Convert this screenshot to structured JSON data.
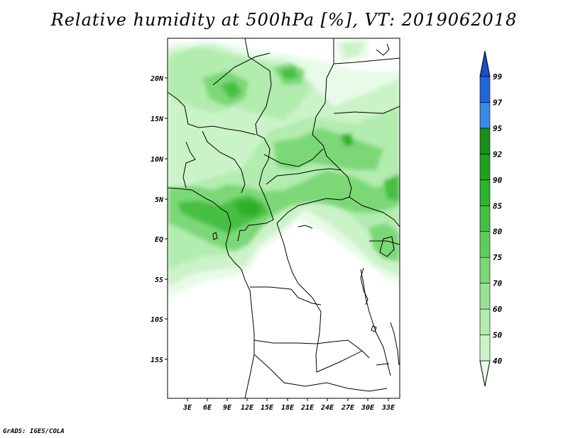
{
  "title": "Relative humidity at 500hPa [%], VT: 2019062018",
  "credit": "GrADS: IGES/COLA",
  "lat_labels": [
    "20N",
    "15N",
    "10N",
    "5N",
    "EQ",
    "5S",
    "10S",
    "15S"
  ],
  "lon_labels": [
    "3E",
    "6E",
    "9E",
    "12E",
    "15E",
    "18E",
    "21E",
    "24E",
    "27E",
    "30E",
    "33E"
  ],
  "colorbar": {
    "labels": [
      "40",
      "50",
      "60",
      "70",
      "75",
      "80",
      "85",
      "90",
      "92",
      "95",
      "97",
      "99"
    ],
    "colors": [
      "#e8fae8",
      "#cbf3c8",
      "#b2ecae",
      "#98e293",
      "#7bd877",
      "#5fcd5a",
      "#46c043",
      "#2eb12c",
      "#20a01e",
      "#188f16",
      "#3a8ae6",
      "#2266d8",
      "#1a4fc4"
    ]
  }
}
